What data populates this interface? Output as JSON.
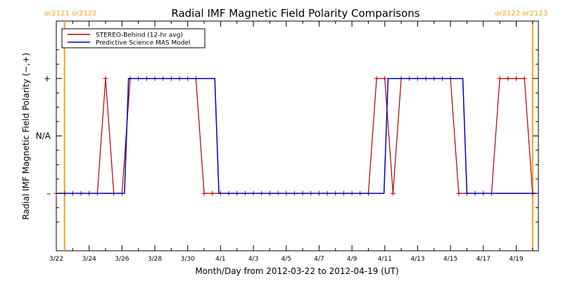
{
  "chart_data": {
    "type": "line",
    "title": "Radial IMF Magnetic Field Polarity Comparisons",
    "xlabel": "Month/Day from 2012-03-22 to 2012-04-19 (UT)",
    "ylabel": "Radial IMF Magnetic Field Polarity (−,+)",
    "x_ticks": [
      "3/22",
      "3/24",
      "3/26",
      "3/28",
      "3/30",
      "4/1",
      "4/3",
      "4/5",
      "4/7",
      "4/9",
      "4/11",
      "4/13",
      "4/15",
      "4/17",
      "4/19"
    ],
    "y_ticks": [
      "–",
      "N/A",
      "+"
    ],
    "xlim": [
      0,
      29.35
    ],
    "ylim": [
      -2,
      2
    ],
    "x_unit": "days since 3/22",
    "legend_position": "top-left",
    "carrington_markers": [
      {
        "label": "or2121 or2122",
        "x": 0.5,
        "label_side": "left"
      },
      {
        "label": "or2122 or2123",
        "x": 29.0,
        "label_side": "right"
      }
    ],
    "series": [
      {
        "name": "STEREO-Behind (12-hr avg)",
        "color": "#b00000",
        "markers": true,
        "x": [
          0.0,
          0.5,
          1.0,
          1.5,
          2.0,
          2.5,
          3.0,
          3.5,
          4.0,
          4.5,
          5.0,
          5.5,
          6.0,
          6.5,
          7.0,
          7.5,
          8.0,
          8.5,
          9.0,
          9.5,
          10.0,
          10.5,
          11.0,
          11.5,
          12.0,
          12.5,
          13.0,
          13.5,
          14.0,
          14.5,
          15.0,
          15.5,
          16.0,
          16.5,
          17.0,
          17.5,
          18.0,
          18.5,
          19.0,
          19.5,
          20.0,
          20.5,
          21.0,
          21.5,
          22.0,
          22.5,
          23.0,
          23.5,
          24.0,
          24.5,
          25.0,
          25.5,
          26.0,
          26.5,
          27.0,
          27.5,
          28.0,
          28.5,
          29.0
        ],
        "values": [
          -1,
          -1,
          -1,
          -1,
          -1,
          -1,
          1,
          -1,
          -1,
          1,
          1,
          1,
          1,
          1,
          1,
          1,
          1,
          1,
          -1,
          -1,
          -1,
          -1,
          -1,
          -1,
          -1,
          -1,
          -1,
          -1,
          -1,
          -1,
          -1,
          -1,
          -1,
          -1,
          -1,
          -1,
          -1,
          -1,
          -1,
          1,
          1,
          -1,
          1,
          1,
          1,
          1,
          1,
          1,
          1,
          -1,
          -1,
          -1,
          -1,
          -1,
          1,
          1,
          1,
          1,
          -1
        ]
      },
      {
        "name": "Predictive Science MAS Model",
        "color": "#0000c0",
        "markers": false,
        "x": [
          0.0,
          4.15,
          4.4,
          9.65,
          9.9,
          19.95,
          20.2,
          24.75,
          25.0,
          29.2
        ],
        "values": [
          -1,
          -1,
          1,
          1,
          -1,
          -1,
          1,
          1,
          -1,
          -1
        ]
      }
    ]
  }
}
